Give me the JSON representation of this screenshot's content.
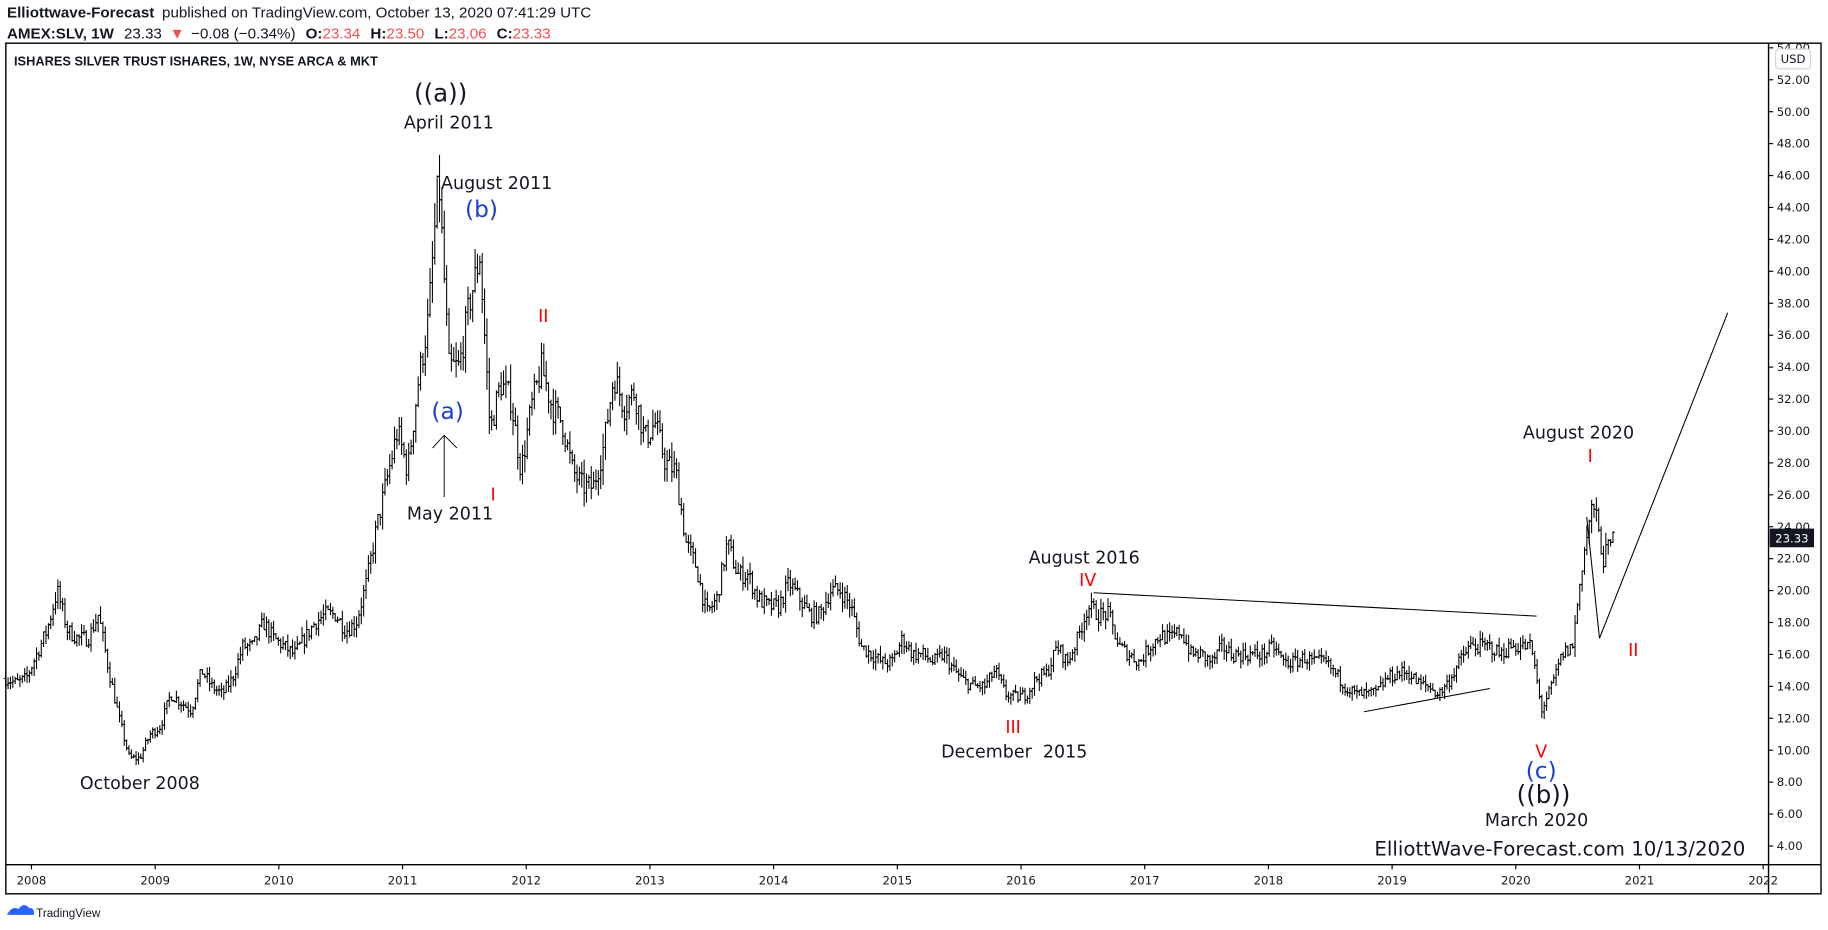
{
  "header": {
    "author": "Elliottwave-Forecast",
    "published": "published on TradingView.com, October 13, 2020 07:41:29 UTC",
    "symbol": "AMEX:SLV, 1W",
    "last": "23.33",
    "change": "−0.08 (−0.34%)",
    "o_label": "O:",
    "o": "23.34",
    "h_label": "H:",
    "h": "23.50",
    "l_label": "L:",
    "l": "23.06",
    "c_label": "C:",
    "c": "23.33",
    "down_color": "#ef5350"
  },
  "footer": {
    "logo_text": "TradingView"
  },
  "chart_data": {
    "type": "ohlc-bar",
    "title": "ISHARES SILVER TRUST ISHARES, 1W, NYSE ARCA & MKT",
    "currency": "USD",
    "last_price_label": "23.33",
    "ylim": [
      3,
      54.5
    ],
    "y_ticks": [
      "54.00",
      "52.00",
      "50.00",
      "48.00",
      "46.00",
      "44.00",
      "42.00",
      "40.00",
      "38.00",
      "36.00",
      "34.00",
      "32.00",
      "30.00",
      "28.00",
      "26.00",
      "24.00",
      "22.00",
      "20.00",
      "18.00",
      "16.00",
      "14.00",
      "12.00",
      "10.00",
      "8.00",
      "6.00",
      "4.00"
    ],
    "x_ticks": [
      "2008",
      "2009",
      "2010",
      "2011",
      "2012",
      "2013",
      "2014",
      "2015",
      "2016",
      "2017",
      "2018",
      "2019",
      "2020",
      "2021",
      "2022"
    ],
    "grid": false,
    "monthly_close": {
      "start": "2007-10",
      "values": [
        14.5,
        14.2,
        14.5,
        16,
        17.5,
        20,
        17.5,
        17,
        17,
        18.5,
        15,
        12,
        9.5,
        9.5,
        11,
        11.5,
        13.5,
        13,
        12.5,
        15,
        14,
        13.5,
        14.5,
        16.5,
        16.5,
        18,
        17,
        16.5,
        16,
        17,
        18,
        18.5,
        18.5,
        17.5,
        18,
        20.5,
        24,
        27,
        30,
        27.5,
        33,
        37,
        46,
        34,
        34,
        38,
        41,
        30,
        33,
        32,
        27.5,
        31.5,
        34,
        31.5,
        30.5,
        27.5,
        26.5,
        26.5,
        29,
        33.5,
        31.5,
        32.5,
        29.5,
        30.5,
        28,
        27.5,
        23,
        21.5,
        18.5,
        19.5,
        23,
        21,
        21,
        19.5,
        19,
        19,
        20.5,
        19.5,
        18.5,
        18.5,
        20,
        20,
        19,
        16.5,
        16,
        15.5,
        15.5,
        17,
        16,
        16,
        15.5,
        16,
        15,
        14.3,
        14,
        14,
        15,
        13.5,
        13.3,
        13.5,
        14.5,
        14.8,
        16.5,
        15.5,
        17,
        19,
        18.5,
        18.5,
        16.5,
        16,
        15.5,
        16.5,
        17.2,
        17,
        17.5,
        16,
        16,
        15.5,
        16.5,
        16,
        16,
        16,
        16,
        16.5,
        15.5,
        15.5,
        15.8,
        15.5,
        15.5,
        14.8,
        14,
        13.5,
        13.5,
        13.6,
        14.5,
        14.8,
        14.9,
        14.2,
        14,
        13.5,
        14.3,
        15.5,
        16.5,
        16.5,
        16.5,
        16,
        16.5,
        16.5,
        16.5,
        12.5,
        14,
        16,
        16.5,
        22,
        25.5,
        22,
        23.33
      ]
    },
    "annotations": [
      {
        "text": "((a))",
        "style": "black"
      },
      {
        "text": "April 2011",
        "style": "label"
      },
      {
        "text": "August 2011",
        "style": "label"
      },
      {
        "text": "(b)",
        "style": "blue"
      },
      {
        "text": "II",
        "style": "red"
      },
      {
        "text": "(a)",
        "style": "blue"
      },
      {
        "text": "May 2011",
        "style": "label"
      },
      {
        "text": "I",
        "style": "red"
      },
      {
        "text": "October 2008",
        "style": "label"
      },
      {
        "text": "III",
        "style": "red"
      },
      {
        "text": "December  2015",
        "style": "label"
      },
      {
        "text": "August 2016",
        "style": "label"
      },
      {
        "text": "IV",
        "style": "red"
      },
      {
        "text": "August 2020",
        "style": "label"
      },
      {
        "text": "I",
        "style": "red"
      },
      {
        "text": "V",
        "style": "red"
      },
      {
        "text": "(c)",
        "style": "blue"
      },
      {
        "text": "((b))",
        "style": "black"
      },
      {
        "text": "March 2020",
        "style": "label"
      },
      {
        "text": "II",
        "style": "red"
      }
    ],
    "watermark": "ElliottWave-Forecast.com 10/13/2020"
  }
}
